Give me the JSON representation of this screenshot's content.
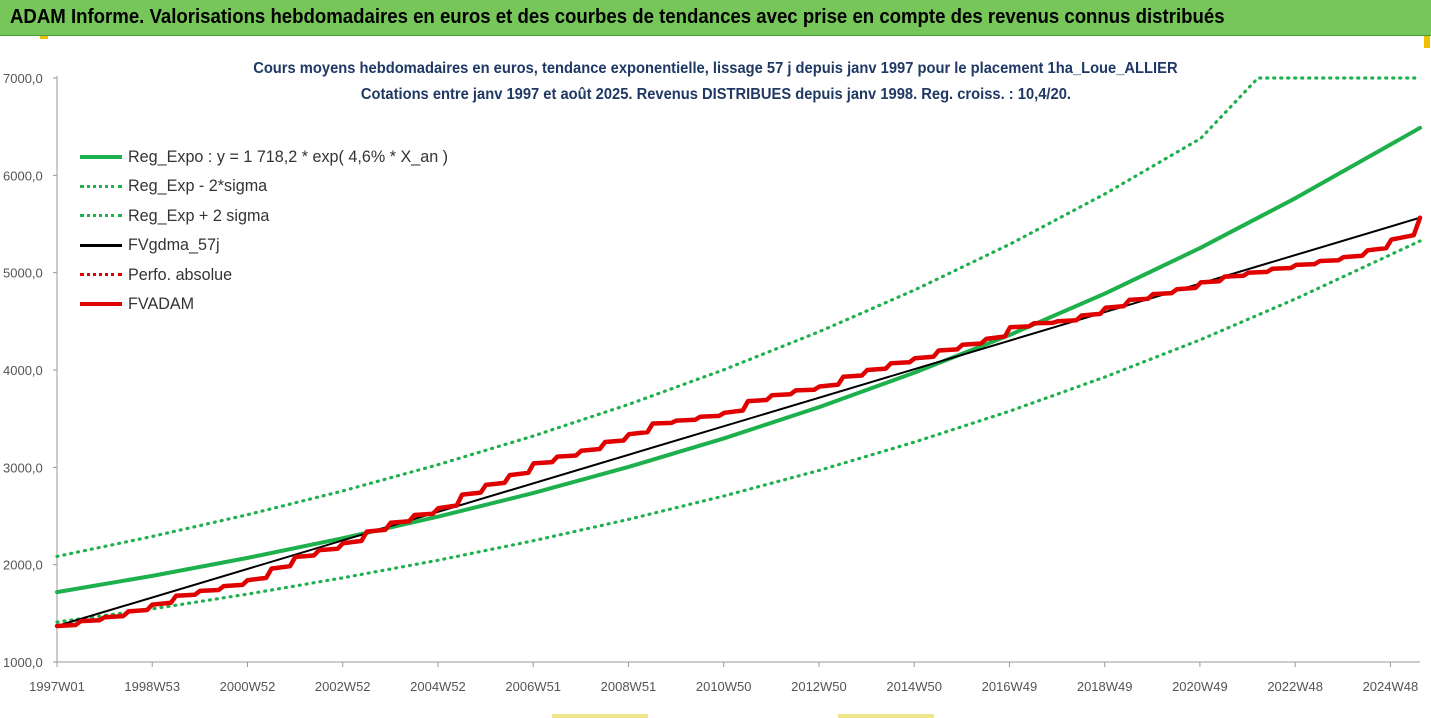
{
  "banner": {
    "text": "ADAM Informe. Valorisations hebdomadaires en euros et des courbes de tendances avec prise en compte des revenus connus distribués",
    "color": "#76c65a"
  },
  "chart_data": {
    "type": "line",
    "title": "Cours moyens hebdomadaires en euros, tendance exponentielle, lissage 57 j depuis janv 1997 pour le placement 1ha_Loue_ALLIER",
    "subtitle": "Cotations entre janv 1997 et août 2025. Revenus DISTRIBUES depuis janv 1998. Reg. croiss. : 10,4/20.",
    "xlabel": "",
    "ylabel": "",
    "ylim": [
      1000,
      7000
    ],
    "y_ticks": [
      "1000,0",
      "2000,0",
      "3000,0",
      "4000,0",
      "5000,0",
      "6000,0",
      "7000,0"
    ],
    "x_ticks": [
      "1997W01",
      "1998W53",
      "2000W52",
      "2002W52",
      "2004W52",
      "2006W51",
      "2008W51",
      "2010W50",
      "2012W50",
      "2014W50",
      "2016W49",
      "2018W49",
      "2020W49",
      "2022W48",
      "2024W48"
    ],
    "x_range_years": [
      1997.0,
      2025.6
    ],
    "grid": false,
    "legend_position": "top-left",
    "series": [
      {
        "name": "Reg_Expo : y = 1 718,2 * exp( 4,6% *  X_an )",
        "color": "#1db04c",
        "style": "solid",
        "x": [
          1997.0,
          1999.0,
          2001.0,
          2003.0,
          2005.0,
          2007.0,
          2009.0,
          2011.0,
          2013.0,
          2015.0,
          2017.0,
          2019.0,
          2021.0,
          2023.0,
          2025.6
        ],
        "values": [
          1718,
          1885,
          2070,
          2272,
          2494,
          2737,
          3005,
          3298,
          3620,
          3974,
          4362,
          4788,
          5256,
          5769,
          6487
        ]
      },
      {
        "name": "Reg_Exp - 2*sigma",
        "color": "#1db04c",
        "style": "dotted",
        "x": [
          1997.0,
          1999.0,
          2001.0,
          2003.0,
          2005.0,
          2007.0,
          2009.0,
          2011.0,
          2013.0,
          2015.0,
          2017.0,
          2019.0,
          2021.0,
          2023.0,
          2025.6
        ],
        "values": [
          1410,
          1546,
          1698,
          1865,
          2046,
          2246,
          2466,
          2706,
          2970,
          3260,
          3579,
          3930,
          4312,
          4734,
          5325
        ]
      },
      {
        "name": "Reg_Exp + 2 sigma",
        "color": "#1db04c",
        "style": "dotted",
        "x": [
          1997.0,
          1999.0,
          2001.0,
          2003.0,
          2005.0,
          2007.0,
          2009.0,
          2011.0,
          2013.0,
          2015.0,
          2017.0,
          2019.0,
          2021.0,
          2022.2,
          2025.6
        ],
        "values": [
          2085,
          2290,
          2513,
          2758,
          3028,
          3323,
          3648,
          4004,
          4395,
          4823,
          5294,
          5812,
          6380,
          7000,
          7000
        ]
      },
      {
        "name": "FVgdma_57j",
        "color": "#000000",
        "style": "solid",
        "x": [
          1997.0,
          2025.6
        ],
        "values": [
          1370,
          5565
        ]
      },
      {
        "name": "Perfo. absolue",
        "color": "#e00000",
        "style": "dotted",
        "x": [],
        "values": []
      },
      {
        "name": "FVADAM",
        "color": "#e00000",
        "style": "solid",
        "x": [
          1997.0,
          1997.5,
          1998.0,
          1998.5,
          1999.0,
          1999.5,
          2000.0,
          2000.5,
          2001.0,
          2001.5,
          2002.0,
          2002.5,
          2003.0,
          2003.5,
          2004.0,
          2004.5,
          2005.0,
          2005.5,
          2006.0,
          2006.5,
          2007.0,
          2007.5,
          2008.0,
          2008.5,
          2009.0,
          2009.5,
          2010.0,
          2010.5,
          2011.0,
          2011.5,
          2012.0,
          2012.5,
          2013.0,
          2013.5,
          2014.0,
          2014.5,
          2015.0,
          2015.5,
          2016.0,
          2016.5,
          2017.0,
          2017.5,
          2018.0,
          2018.5,
          2019.0,
          2019.5,
          2020.0,
          2020.5,
          2021.0,
          2021.5,
          2022.0,
          2022.5,
          2023.0,
          2023.5,
          2024.0,
          2024.5,
          2025.0,
          2025.6
        ],
        "values": [
          1370,
          1420,
          1460,
          1520,
          1590,
          1680,
          1730,
          1780,
          1840,
          1960,
          2080,
          2150,
          2220,
          2340,
          2430,
          2510,
          2580,
          2720,
          2820,
          2920,
          3040,
          3110,
          3170,
          3260,
          3340,
          3450,
          3480,
          3520,
          3560,
          3680,
          3740,
          3790,
          3830,
          3930,
          4000,
          4070,
          4120,
          4200,
          4260,
          4320,
          4440,
          4480,
          4500,
          4560,
          4640,
          4720,
          4780,
          4830,
          4900,
          4960,
          5000,
          5040,
          5080,
          5120,
          5160,
          5230,
          5340,
          5565
        ]
      }
    ]
  }
}
